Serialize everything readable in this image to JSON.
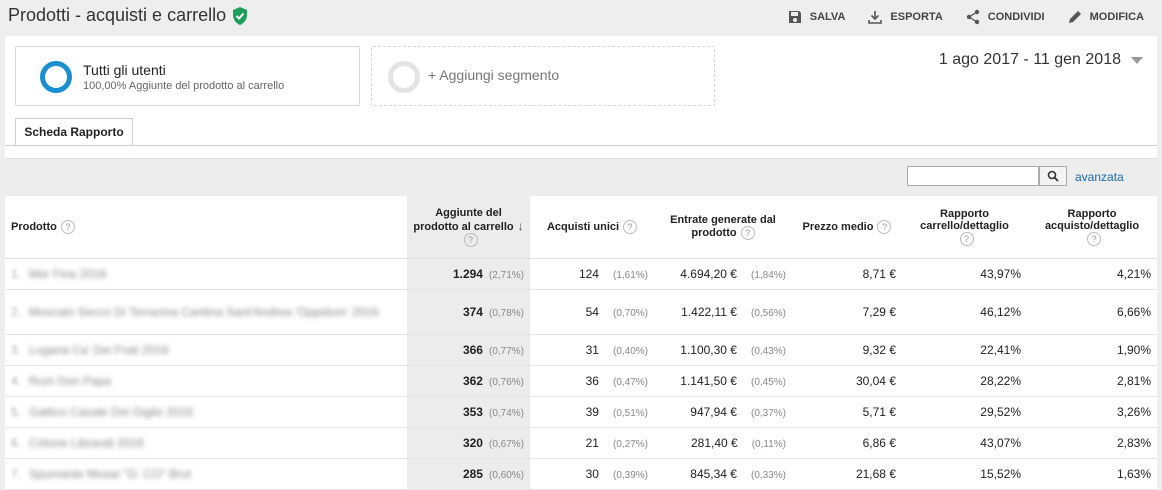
{
  "header": {
    "title": "Prodotti - acquisti e carrello",
    "actions": [
      {
        "label": "SALVA",
        "icon": "save-icon"
      },
      {
        "label": "ESPORTA",
        "icon": "download-icon"
      },
      {
        "label": "CONDIVIDI",
        "icon": "share-icon"
      },
      {
        "label": "MODIFICA",
        "icon": "pencil-icon"
      }
    ]
  },
  "segments": {
    "active": {
      "title": "Tutti gli utenti",
      "subtitle": "100,00% Aggiunte del prodotto al carrello"
    },
    "add": {
      "label": "+ Aggiungi segmento"
    }
  },
  "daterange": "1 ago 2017 - 11 gen 2018",
  "tab": "Scheda Rapporto",
  "search": {
    "value": "",
    "advanced": "avanzata"
  },
  "table": {
    "columns": {
      "product": "Prodotto",
      "adds": "Aggiunte del prodotto al carrello",
      "unique": "Acquisti unici",
      "revenue": "Entrate generate dal prodotto",
      "price": "Prezzo medio",
      "cart_detail": "Rapporto carrello/dettaglio",
      "buy_detail": "Rapporto acquisto/dettaglio"
    },
    "help": "?",
    "rows": [
      {
        "n": "1.",
        "product": "Mer Fina 2016",
        "adds": "1.294",
        "adds_pct": "(2,71%)",
        "unique": "124",
        "unique_pct": "(1,61%)",
        "revenue": "4.694,20 €",
        "revenue_pct": "(1,84%)",
        "price": "8,71 €",
        "cart": "43,97%",
        "buy": "4,21%"
      },
      {
        "n": "2.",
        "product": "Moscato Secco Di Terracina Cantina Sant'Andrea 'Oppidum' 2016",
        "adds": "374",
        "adds_pct": "(0,78%)",
        "unique": "54",
        "unique_pct": "(0,70%)",
        "revenue": "1.422,11 €",
        "revenue_pct": "(0,56%)",
        "price": "7,29 €",
        "cart": "46,12%",
        "buy": "6,66%"
      },
      {
        "n": "3.",
        "product": "Lugana Ca' Dei Frati 2016",
        "adds": "366",
        "adds_pct": "(0,77%)",
        "unique": "31",
        "unique_pct": "(0,40%)",
        "revenue": "1.100,30 €",
        "revenue_pct": "(0,43%)",
        "price": "9,32 €",
        "cart": "22,41%",
        "buy": "1,90%"
      },
      {
        "n": "4.",
        "product": "Rum Don Papa",
        "adds": "362",
        "adds_pct": "(0,76%)",
        "unique": "36",
        "unique_pct": "(0,47%)",
        "revenue": "1.141,50 €",
        "revenue_pct": "(0,45%)",
        "price": "30,04 €",
        "cart": "28,22%",
        "buy": "2,81%"
      },
      {
        "n": "5.",
        "product": "Gattico Casale Del Giglio 2016",
        "adds": "353",
        "adds_pct": "(0,74%)",
        "unique": "39",
        "unique_pct": "(0,51%)",
        "revenue": "947,94 €",
        "revenue_pct": "(0,37%)",
        "price": "5,71 €",
        "cart": "29,52%",
        "buy": "3,26%"
      },
      {
        "n": "6.",
        "product": "Critone Librandi 2016",
        "adds": "320",
        "adds_pct": "(0,67%)",
        "unique": "21",
        "unique_pct": "(0,27%)",
        "revenue": "281,40 €",
        "revenue_pct": "(0,11%)",
        "price": "6,86 €",
        "cart": "43,07%",
        "buy": "2,83%"
      },
      {
        "n": "7.",
        "product": "Spumante Mosar \"D. CO\" Brut",
        "adds": "285",
        "adds_pct": "(0,60%)",
        "unique": "30",
        "unique_pct": "(0,39%)",
        "revenue": "845,34 €",
        "revenue_pct": "(0,33%)",
        "price": "21,68 €",
        "cart": "15,52%",
        "buy": "1,63%"
      }
    ]
  }
}
